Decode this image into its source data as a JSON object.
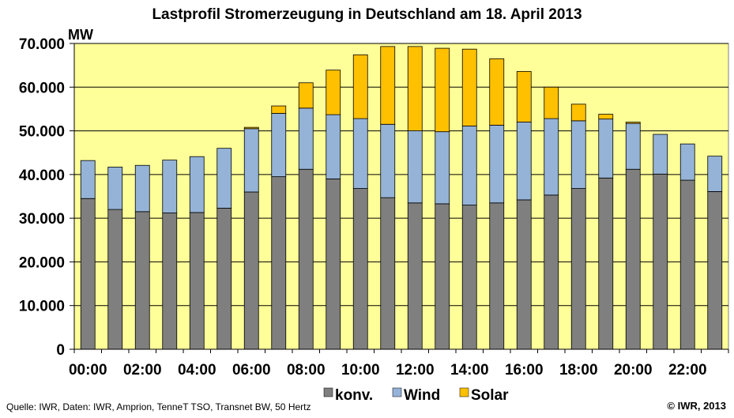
{
  "chart_data": {
    "type": "bar",
    "stacked": true,
    "title": "Lastprofil Stromerzeugung in Deutschland am 18. April 2013",
    "ylabel": "MW",
    "ylim": [
      0,
      70000
    ],
    "grid": true,
    "legend_position": "bottom",
    "categories": [
      "00:00",
      "01:00",
      "02:00",
      "03:00",
      "04:00",
      "05:00",
      "06:00",
      "07:00",
      "08:00",
      "09:00",
      "10:00",
      "11:00",
      "12:00",
      "13:00",
      "14:00",
      "15:00",
      "16:00",
      "17:00",
      "18:00",
      "19:00",
      "20:00",
      "21:00",
      "22:00",
      "23:00"
    ],
    "x_tick_labels": [
      "00:00",
      "02:00",
      "04:00",
      "06:00",
      "08:00",
      "10:00",
      "12:00",
      "14:00",
      "16:00",
      "18:00",
      "20:00",
      "22:00"
    ],
    "y_tick_labels": [
      "0",
      "10.000",
      "20.000",
      "30.000",
      "40.000",
      "50.000",
      "60.000",
      "70.000"
    ],
    "series": [
      {
        "name": "konv.",
        "color": "#7f7f7f",
        "values": [
          34500,
          32000,
          31500,
          31200,
          31300,
          32300,
          36000,
          39500,
          41200,
          39000,
          36800,
          34700,
          33500,
          33300,
          33000,
          33500,
          34200,
          35300,
          36800,
          39200,
          41200,
          40100,
          38700,
          36100
        ]
      },
      {
        "name": "Wind",
        "color": "#95b3d7",
        "values": [
          8700,
          9700,
          10600,
          12100,
          12800,
          13700,
          14500,
          14500,
          14000,
          14700,
          16000,
          16800,
          16500,
          16500,
          18100,
          17800,
          17800,
          17500,
          15500,
          13500,
          10500,
          9100,
          8300,
          8100
        ]
      },
      {
        "name": "Solar",
        "color": "#ffc000",
        "values": [
          0,
          0,
          0,
          0,
          0,
          0,
          300,
          1700,
          5800,
          10200,
          14600,
          17800,
          19300,
          19100,
          17600,
          15200,
          11600,
          7200,
          3800,
          1100,
          300,
          0,
          0,
          0
        ]
      }
    ]
  },
  "footer": {
    "source": "Quelle: IWR, Daten: IWR, Amprion, TenneT  TSO, Transnet  BW, 50 Hertz",
    "copyright": "© IWR, 2013"
  },
  "colors": {
    "plot_background": "#ffff99",
    "gridline": "#000000",
    "konv": "#7f7f7f",
    "wind": "#95b3d7",
    "solar": "#ffc000"
  }
}
